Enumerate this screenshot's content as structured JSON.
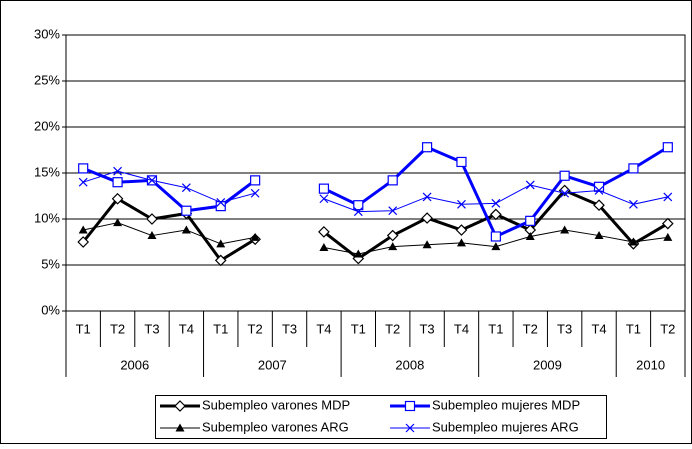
{
  "chart_data": {
    "type": "line",
    "categories": [
      "T1",
      "T2",
      "T3",
      "T4",
      "T1",
      "T2",
      "T3",
      "T4",
      "T1",
      "T2",
      "T3",
      "T4",
      "T1",
      "T2",
      "T3",
      "T4",
      "T1",
      "T2"
    ],
    "category_groups": [
      {
        "label": "2006",
        "size": 4
      },
      {
        "label": "2007",
        "size": 4
      },
      {
        "label": "2008",
        "size": 4
      },
      {
        "label": "2009",
        "size": 4
      },
      {
        "label": "2010",
        "size": 2
      }
    ],
    "ylim": [
      0,
      30
    ],
    "yticks": [
      {
        "value": 0,
        "label": "0%"
      },
      {
        "value": 5,
        "label": "5%"
      },
      {
        "value": 10,
        "label": "10%"
      },
      {
        "value": 15,
        "label": "15%"
      },
      {
        "value": 20,
        "label": "20%"
      },
      {
        "value": 25,
        "label": "25%"
      },
      {
        "value": 30,
        "label": "30%"
      }
    ],
    "grid": true,
    "legend": "bottom",
    "series": [
      {
        "name": "Subempleo varones MDP",
        "color": "#000000",
        "marker": "diamond",
        "line_width": 3,
        "values": [
          7.5,
          12.2,
          10.0,
          10.6,
          5.5,
          7.8,
          null,
          8.6,
          5.7,
          8.2,
          10.1,
          8.8,
          10.5,
          8.8,
          13.1,
          11.5,
          7.3,
          9.5
        ]
      },
      {
        "name": "Subempleo mujeres MDP",
        "color": "#0000ff",
        "marker": "square",
        "line_width": 3,
        "values": [
          15.5,
          14.0,
          14.2,
          10.9,
          11.4,
          14.2,
          null,
          13.3,
          11.5,
          14.2,
          17.8,
          16.2,
          8.1,
          9.8,
          14.7,
          13.5,
          15.5,
          17.8
        ]
      },
      {
        "name": "Subempleo varones ARG",
        "color": "#000000",
        "marker": "triangle",
        "line_width": 1,
        "values": [
          8.8,
          9.6,
          8.2,
          8.8,
          7.3,
          8.0,
          null,
          6.9,
          6.2,
          7.0,
          7.2,
          7.4,
          7.0,
          8.1,
          8.8,
          8.2,
          7.5,
          8.0
        ]
      },
      {
        "name": "Subempleo mujeres ARG",
        "color": "#0000ff",
        "marker": "cross",
        "line_width": 1,
        "values": [
          14.0,
          15.2,
          14.2,
          13.4,
          11.8,
          12.8,
          null,
          12.2,
          10.8,
          10.9,
          12.4,
          11.6,
          11.7,
          13.7,
          12.8,
          13.1,
          11.6,
          12.4
        ]
      }
    ]
  }
}
